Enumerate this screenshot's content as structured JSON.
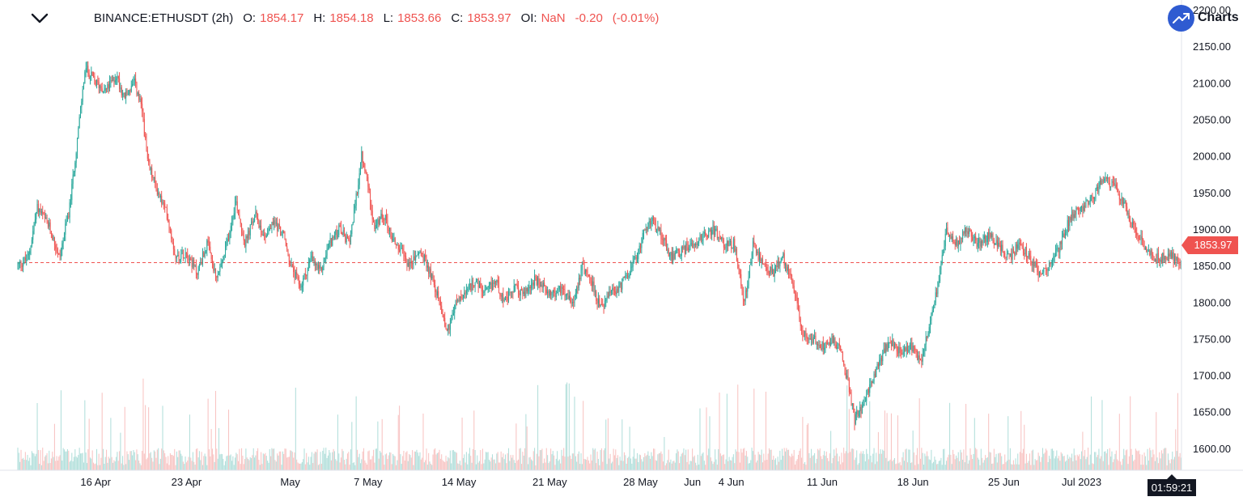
{
  "header": {
    "symbol": "BINANCE:ETHUSDT (2h)",
    "o_label": "O:",
    "o_value": "1854.17",
    "h_label": "H:",
    "h_value": "1854.18",
    "l_label": "L:",
    "l_value": "1853.66",
    "c_label": "C:",
    "c_value": "1853.97",
    "oi_label": "OI:",
    "oi_value": "NaN",
    "change": "-0.20",
    "change_pct": "(-0.01%)"
  },
  "brand": {
    "text": "Charts",
    "icon": "trend-up-icon"
  },
  "last_price_label": "1853.97",
  "countdown": "01:59:21",
  "colors": {
    "up": "#26a69a",
    "down": "#ef5350",
    "vol_up": "#b2dfdb",
    "vol_down": "#f8c4c3",
    "price_line": "#ef5350",
    "brand": "#2f5bd1"
  },
  "chart_data": {
    "type": "candlestick",
    "ylim": [
      1570,
      2200
    ],
    "last_price": 1853.97,
    "y_ticks": [
      {
        "value": 2200,
        "label": "2200.00"
      },
      {
        "value": 2150,
        "label": "2150.00"
      },
      {
        "value": 2100,
        "label": "2100.00"
      },
      {
        "value": 2050,
        "label": "2050.00"
      },
      {
        "value": 2000,
        "label": "2000.00"
      },
      {
        "value": 1950,
        "label": "1950.00"
      },
      {
        "value": 1900,
        "label": "1900.00"
      },
      {
        "value": 1850,
        "label": "1850.00"
      },
      {
        "value": 1800,
        "label": "1800.00"
      },
      {
        "value": 1750,
        "label": "1750.00"
      },
      {
        "value": 1700,
        "label": "1700.00"
      },
      {
        "value": 1650,
        "label": "1650.00"
      },
      {
        "value": 1600,
        "label": "1600.00"
      }
    ],
    "x_ticks": [
      {
        "day": 6,
        "label": "16 Apr"
      },
      {
        "day": 13,
        "label": "23 Apr"
      },
      {
        "day": 21,
        "label": "May"
      },
      {
        "day": 27,
        "label": "7 May"
      },
      {
        "day": 34,
        "label": "14 May"
      },
      {
        "day": 41,
        "label": "21 May"
      },
      {
        "day": 48,
        "label": "28 May"
      },
      {
        "day": 52,
        "label": "Jun"
      },
      {
        "day": 55,
        "label": "4 Jun"
      },
      {
        "day": 62,
        "label": "11 Jun"
      },
      {
        "day": 69,
        "label": "18 Jun"
      },
      {
        "day": 76,
        "label": "25 Jun"
      },
      {
        "day": 82,
        "label": "Jul 2023"
      }
    ],
    "x_range_days": [
      0,
      89.7
    ],
    "price_path": [
      [
        0,
        1850
      ],
      [
        0.8,
        1860
      ],
      [
        1.5,
        1930
      ],
      [
        2.5,
        1900
      ],
      [
        3.2,
        1860
      ],
      [
        4.0,
        1930
      ],
      [
        4.5,
        2010
      ],
      [
        5.2,
        2120
      ],
      [
        6.0,
        2100
      ],
      [
        6.8,
        2090
      ],
      [
        7.6,
        2110
      ],
      [
        8.2,
        2080
      ],
      [
        9.0,
        2100
      ],
      [
        9.6,
        2060
      ],
      [
        10.0,
        1990
      ],
      [
        10.8,
        1950
      ],
      [
        11.5,
        1920
      ],
      [
        12.2,
        1860
      ],
      [
        13.0,
        1870
      ],
      [
        13.8,
        1840
      ],
      [
        14.6,
        1880
      ],
      [
        15.3,
        1830
      ],
      [
        16.0,
        1870
      ],
      [
        16.8,
        1940
      ],
      [
        17.5,
        1880
      ],
      [
        18.3,
        1920
      ],
      [
        19.0,
        1890
      ],
      [
        19.8,
        1910
      ],
      [
        20.5,
        1890
      ],
      [
        21.0,
        1850
      ],
      [
        21.8,
        1820
      ],
      [
        22.6,
        1860
      ],
      [
        23.3,
        1840
      ],
      [
        24.0,
        1880
      ],
      [
        24.8,
        1900
      ],
      [
        25.5,
        1880
      ],
      [
        26.0,
        1930
      ],
      [
        26.5,
        2000
      ],
      [
        27.0,
        1960
      ],
      [
        27.5,
        1900
      ],
      [
        28.2,
        1920
      ],
      [
        28.8,
        1890
      ],
      [
        29.5,
        1870
      ],
      [
        30.2,
        1850
      ],
      [
        31.0,
        1870
      ],
      [
        31.8,
        1840
      ],
      [
        32.5,
        1800
      ],
      [
        33.1,
        1760
      ],
      [
        33.8,
        1800
      ],
      [
        34.5,
        1810
      ],
      [
        35.2,
        1830
      ],
      [
        36.0,
        1810
      ],
      [
        36.8,
        1830
      ],
      [
        37.6,
        1800
      ],
      [
        38.3,
        1820
      ],
      [
        39.0,
        1810
      ],
      [
        39.8,
        1830
      ],
      [
        40.5,
        1820
      ],
      [
        41.3,
        1810
      ],
      [
        42.0,
        1820
      ],
      [
        42.8,
        1800
      ],
      [
        43.5,
        1850
      ],
      [
        44.2,
        1830
      ],
      [
        44.9,
        1790
      ],
      [
        45.6,
        1810
      ],
      [
        46.4,
        1820
      ],
      [
        47.0,
        1840
      ],
      [
        47.7,
        1860
      ],
      [
        48.3,
        1900
      ],
      [
        49.0,
        1910
      ],
      [
        49.7,
        1890
      ],
      [
        50.4,
        1860
      ],
      [
        51.2,
        1870
      ],
      [
        52.0,
        1880
      ],
      [
        52.8,
        1890
      ],
      [
        53.6,
        1900
      ],
      [
        54.4,
        1880
      ],
      [
        55.2,
        1880
      ],
      [
        56.0,
        1800
      ],
      [
        56.7,
        1880
      ],
      [
        57.4,
        1850
      ],
      [
        58.2,
        1840
      ],
      [
        59.0,
        1860
      ],
      [
        59.7,
        1830
      ],
      [
        60.4,
        1760
      ],
      [
        61.2,
        1750
      ],
      [
        62.0,
        1740
      ],
      [
        62.8,
        1750
      ],
      [
        63.5,
        1730
      ],
      [
        64.0,
        1690
      ],
      [
        64.5,
        1640
      ],
      [
        65.2,
        1660
      ],
      [
        65.8,
        1690
      ],
      [
        66.5,
        1720
      ],
      [
        67.2,
        1750
      ],
      [
        68.0,
        1730
      ],
      [
        68.8,
        1740
      ],
      [
        69.6,
        1720
      ],
      [
        70.4,
        1780
      ],
      [
        71.0,
        1830
      ],
      [
        71.6,
        1900
      ],
      [
        72.4,
        1880
      ],
      [
        73.2,
        1900
      ],
      [
        74.0,
        1880
      ],
      [
        74.8,
        1890
      ],
      [
        75.6,
        1880
      ],
      [
        76.4,
        1860
      ],
      [
        77.2,
        1880
      ],
      [
        78.0,
        1860
      ],
      [
        78.8,
        1840
      ],
      [
        79.6,
        1850
      ],
      [
        80.4,
        1880
      ],
      [
        81.2,
        1920
      ],
      [
        82.0,
        1930
      ],
      [
        82.8,
        1940
      ],
      [
        83.6,
        1970
      ],
      [
        84.4,
        1960
      ],
      [
        85.2,
        1940
      ],
      [
        86.0,
        1900
      ],
      [
        86.8,
        1880
      ],
      [
        87.5,
        1860
      ],
      [
        88.2,
        1860
      ],
      [
        88.8,
        1865
      ],
      [
        89.7,
        1854
      ]
    ]
  }
}
